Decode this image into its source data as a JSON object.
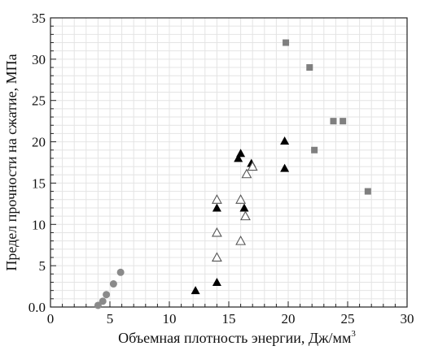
{
  "chart_data": {
    "type": "scatter",
    "xlabel": "Объемная плотность энергии, Дж/мм",
    "xlabel_superscript": "3",
    "ylabel": "Предел прочности на сжатие, МПа",
    "xlim": [
      0,
      30
    ],
    "ylim": [
      0,
      35
    ],
    "x_ticks": [
      0,
      5,
      10,
      15,
      20,
      25,
      30
    ],
    "x_tick_labels": [
      "0",
      "5",
      "10",
      "15",
      "20",
      "25",
      "30"
    ],
    "y_ticks": [
      0,
      5,
      10,
      15,
      20,
      25,
      30,
      35
    ],
    "y_tick_labels": [
      "0.0",
      "5",
      "10",
      "15",
      "20",
      "25",
      "30",
      "35"
    ],
    "grid": true,
    "series": [
      {
        "marker": "circle",
        "color": "#8a8a8a",
        "points": [
          [
            4.0,
            0.2
          ],
          [
            4.4,
            0.7
          ],
          [
            4.7,
            1.5
          ],
          [
            5.3,
            2.8
          ],
          [
            5.9,
            4.2
          ]
        ]
      },
      {
        "marker": "triangle-filled",
        "color": "#000000",
        "points": [
          [
            12.2,
            2.0
          ],
          [
            14.0,
            3.0
          ],
          [
            14.0,
            12.0
          ],
          [
            15.8,
            18.0
          ],
          [
            16.0,
            18.6
          ],
          [
            16.3,
            12.0
          ],
          [
            16.9,
            17.4
          ],
          [
            19.7,
            20.1
          ],
          [
            19.7,
            16.8
          ]
        ]
      },
      {
        "marker": "triangle-open",
        "color": "#555555",
        "points": [
          [
            14.0,
            13.0
          ],
          [
            14.0,
            9.0
          ],
          [
            14.0,
            6.0
          ],
          [
            16.0,
            13.0
          ],
          [
            16.0,
            8.0
          ],
          [
            16.4,
            11.0
          ],
          [
            16.5,
            16.1
          ],
          [
            17.0,
            17.0
          ]
        ]
      },
      {
        "marker": "square",
        "color": "#7f7f7f",
        "points": [
          [
            19.8,
            32.0
          ],
          [
            21.8,
            29.0
          ],
          [
            22.2,
            19.0
          ],
          [
            23.8,
            22.5
          ],
          [
            24.6,
            22.5
          ],
          [
            26.7,
            14.0
          ]
        ]
      }
    ]
  }
}
